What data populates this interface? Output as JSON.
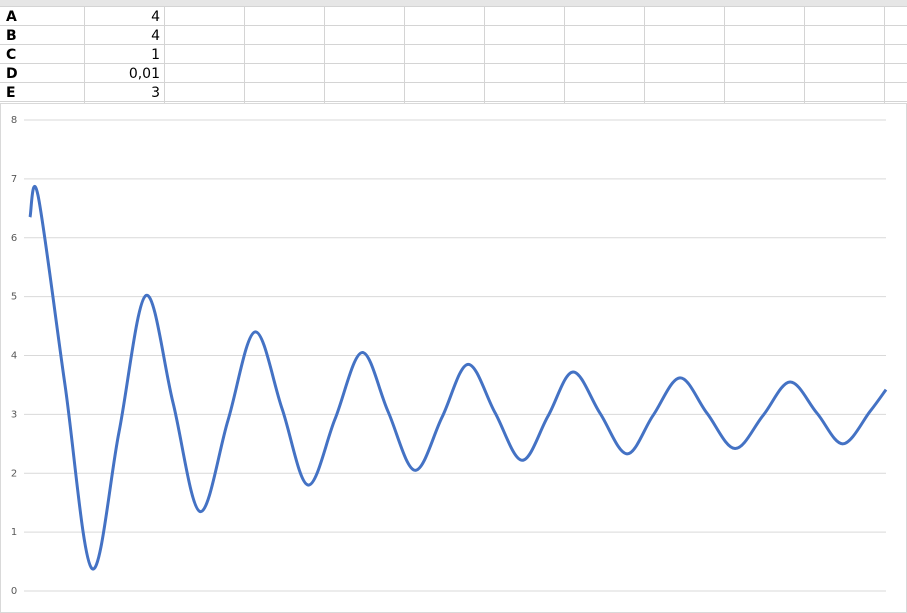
{
  "sheet": {
    "rows": [
      {
        "label": "A",
        "value": "4"
      },
      {
        "label": "B",
        "value": "4"
      },
      {
        "label": "C",
        "value": "1"
      },
      {
        "label": "D",
        "value": "0,01"
      },
      {
        "label": "E",
        "value": "3"
      }
    ]
  },
  "chart_data": {
    "type": "line",
    "color": "#4472c4",
    "x": [
      0,
      8,
      35,
      62,
      89,
      116,
      143,
      170,
      198,
      225,
      252,
      278,
      305,
      332,
      358,
      385,
      412,
      438,
      465,
      492,
      518,
      543,
      570,
      597,
      623,
      650,
      677,
      705,
      733,
      760,
      787,
      813,
      840,
      856
    ],
    "values": [
      6.35,
      6.72,
      3.5,
      0.38,
      2.7,
      5.02,
      3.2,
      1.35,
      2.9,
      4.4,
      3.1,
      1.8,
      2.92,
      4.05,
      3.05,
      2.05,
      2.95,
      3.85,
      3.03,
      2.22,
      2.97,
      3.72,
      3.02,
      2.33,
      2.98,
      3.62,
      3.02,
      2.42,
      2.98,
      3.55,
      3.02,
      2.5,
      3.05,
      3.42
    ],
    "xlim": [
      0,
      856
    ],
    "ylim": [
      0,
      8
    ],
    "yticks": [
      0,
      1,
      2,
      3,
      4,
      5,
      6,
      7,
      8
    ],
    "grid": true
  }
}
